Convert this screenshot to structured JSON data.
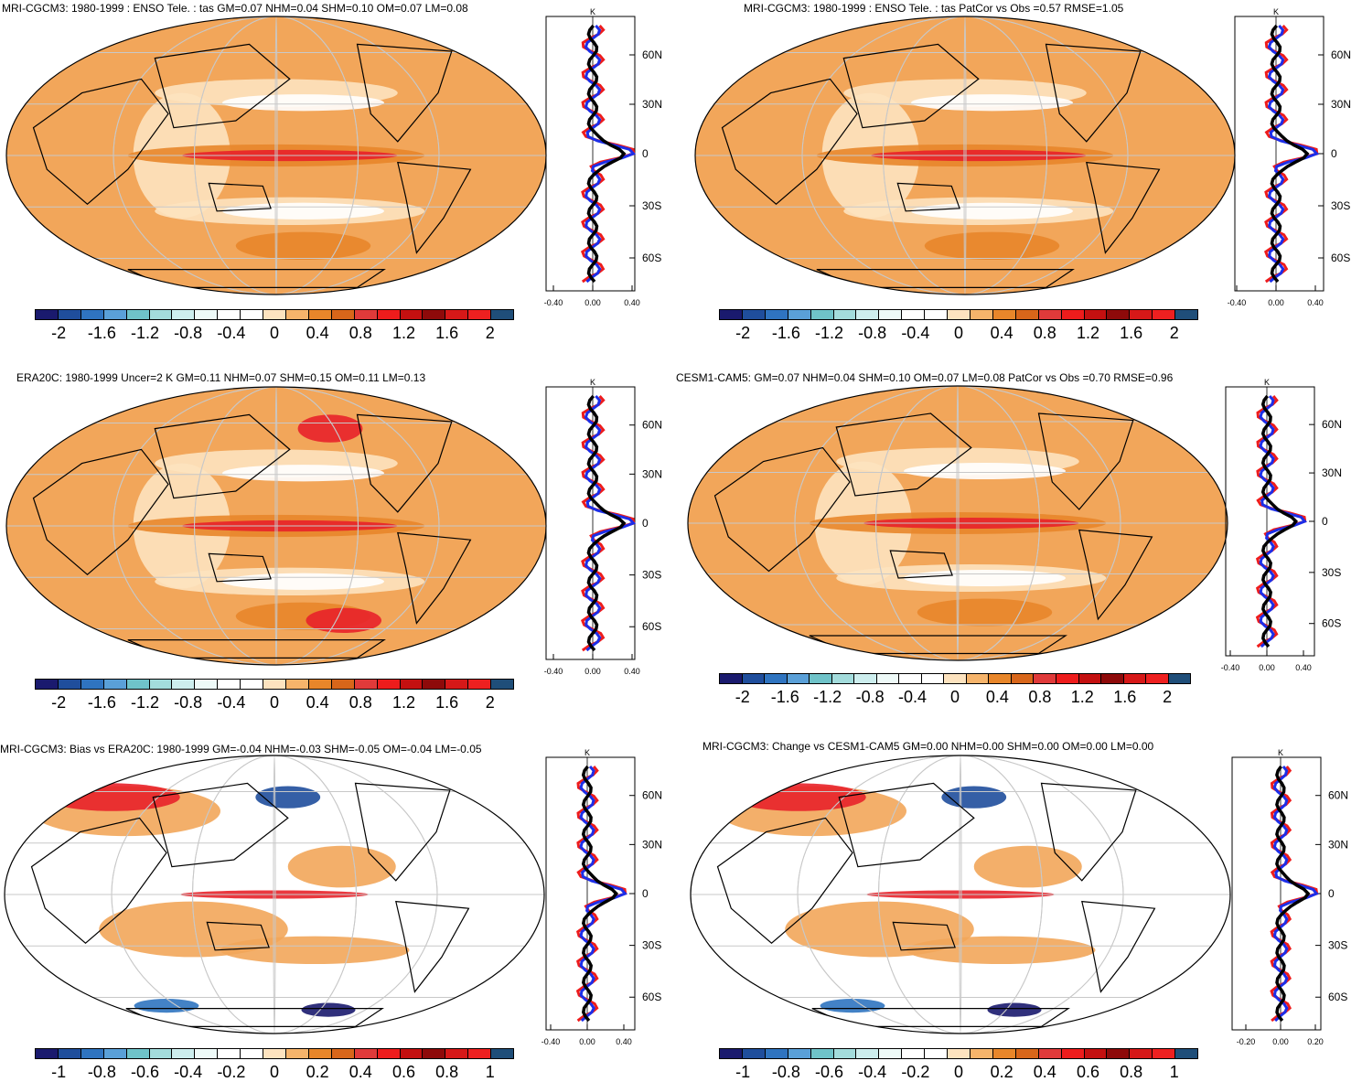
{
  "panels": [
    {
      "title": "MRI-CGCM3: 1980-1999 : ENSO Tele. : tas GM=0.07 NHM=0.04 SHM=0.10 OM=0.07 LM=0.08",
      "profile_unit": "K",
      "x_ticks": [
        "-0.40",
        "0.00",
        "0.40"
      ],
      "lat_ticks": [
        "60N",
        "30N",
        "0",
        "30S",
        "60S"
      ],
      "colorbar_labels": [
        "-2",
        "-1.6",
        "-1.2",
        "-0.8",
        "-0.4",
        "0",
        "0.4",
        "0.8",
        "1.2",
        "1.6",
        "2"
      ]
    },
    {
      "title": "MRI-CGCM3: 1980-1999 : ENSO Tele. : tas PatCor vs Obs =0.57 RMSE=1.05",
      "profile_unit": "K",
      "x_ticks": [
        "-0.40",
        "0.00",
        "0.40"
      ],
      "lat_ticks": [
        "60N",
        "30N",
        "0",
        "30S",
        "60S"
      ],
      "colorbar_labels": [
        "-2",
        "-1.6",
        "-1.2",
        "-0.8",
        "-0.4",
        "0",
        "0.4",
        "0.8",
        "1.2",
        "1.6",
        "2"
      ]
    },
    {
      "title": "ERA20C: 1980-1999 Uncer=2 K GM=0.11 NHM=0.07 SHM=0.15 OM=0.11 LM=0.13",
      "profile_unit": "K",
      "x_ticks": [
        "-0.40",
        "0.00",
        "0.40"
      ],
      "lat_ticks": [
        "60N",
        "30N",
        "0",
        "30S",
        "60S"
      ],
      "colorbar_labels": [
        "-2",
        "-1.6",
        "-1.2",
        "-0.8",
        "-0.4",
        "0",
        "0.4",
        "0.8",
        "1.2",
        "1.6",
        "2"
      ]
    },
    {
      "title": "CESM1-CAM5: GM=0.07 NHM=0.04 SHM=0.10 OM=0.07 LM=0.08 PatCor vs Obs =0.70 RMSE=0.96",
      "profile_unit": "K",
      "x_ticks": [
        "-0.40",
        "0.00",
        "0.40"
      ],
      "lat_ticks": [
        "60N",
        "30N",
        "0",
        "30S",
        "60S"
      ],
      "colorbar_labels": [
        "-2",
        "-1.6",
        "-1.2",
        "-0.8",
        "-0.4",
        "0",
        "0.4",
        "0.8",
        "1.2",
        "1.6",
        "2"
      ]
    },
    {
      "title": "MRI-CGCM3: Bias vs ERA20C: 1980-1999 GM=-0.04 NHM=-0.03 SHM=-0.05 OM=-0.04 LM=-0.05",
      "profile_unit": "K",
      "x_ticks": [
        "-0.40",
        "0.00",
        "0.40"
      ],
      "lat_ticks": [
        "60N",
        "30N",
        "0",
        "30S",
        "60S"
      ],
      "colorbar_labels": [
        "-1",
        "-0.8",
        "-0.6",
        "-0.4",
        "-0.2",
        "0",
        "0.2",
        "0.4",
        "0.6",
        "0.8",
        "1"
      ]
    },
    {
      "title": "MRI-CGCM3: Change vs CESM1-CAM5 GM=0.00 NHM=0.00 SHM=0.00 OM=0.00 LM=0.00",
      "profile_unit": "K",
      "x_ticks": [
        "-0.20",
        "0.00",
        "0.20"
      ],
      "lat_ticks": [
        "60N",
        "30N",
        "0",
        "30S",
        "60S"
      ],
      "colorbar_labels": [
        "-1",
        "-0.8",
        "-0.6",
        "-0.4",
        "-0.2",
        "0",
        "0.2",
        "0.4",
        "0.6",
        "0.8",
        "1"
      ]
    }
  ],
  "colorbar_colors": [
    "#1a1a6e",
    "#1f4e9c",
    "#2f74c0",
    "#5aa0d8",
    "#6fc3c9",
    "#a3dcdc",
    "#cdeeee",
    "#eefaf8",
    "#ffffff",
    "#ffffff",
    "#fde3bf",
    "#f6b46b",
    "#e8862a",
    "#d8661a",
    "#e03a3a",
    "#ee1c1c",
    "#c41010",
    "#8e0a0a",
    "#d61818",
    "#ee2020",
    "#1f4e79"
  ],
  "colors": {
    "land_outline": "#000000",
    "grid": "#c8c8c8",
    "warm_base": "#f2a65a",
    "warm_light": "#fde3bf",
    "hot": "#e8222a",
    "cold": "#2f74c0",
    "profile_model": "#ee1c1c",
    "profile_obs": "#1c2ee8",
    "profile_mean": "#000000"
  }
}
